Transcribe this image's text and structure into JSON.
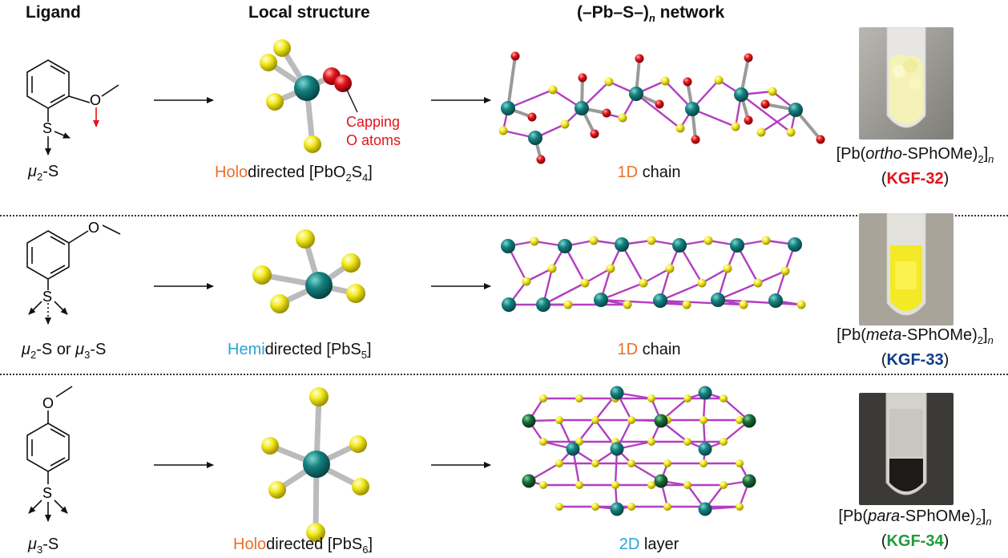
{
  "headers": {
    "ligand": "Ligand",
    "local": "Local structure",
    "network_pre": "(–Pb–S–)",
    "network_sub": "n",
    "network_post": " network"
  },
  "rows": [
    {
      "ligand_mu": "μ",
      "ligand_mu_sub": "2",
      "ligand_label_rest": "-S",
      "local_prefix": "Holo",
      "local_mid": "directed [PbO",
      "local_sub1": "2",
      "local_mid2": "S",
      "local_sub2": "4",
      "local_end": "]",
      "capping_line1": "Capping",
      "capping_line2": "O atoms",
      "net_dim": "1D",
      "net_rest": " chain",
      "formula_pre": "[Pb(",
      "formula_ital": "ortho",
      "formula_post": "-SPhOMe)",
      "formula_sub": "2",
      "formula_end": "]",
      "formula_n": "n",
      "code_open": "(",
      "code": "KGF-32",
      "code_close": ")"
    },
    {
      "ligand_mu": "μ",
      "ligand_mu_sub": "2",
      "ligand_label_mid": "-S or ",
      "ligand_mu2": "μ",
      "ligand_mu2_sub": "3",
      "ligand_label_rest": "-S",
      "local_prefix": "Hemi",
      "local_mid": "directed [PbS",
      "local_sub1": "5",
      "local_end": "]",
      "net_dim": "1D",
      "net_rest": " chain",
      "formula_pre": "[Pb(",
      "formula_ital": "meta",
      "formula_post": "-SPhOMe)",
      "formula_sub": "2",
      "formula_end": "]",
      "formula_n": "n",
      "code_open": "(",
      "code": "KGF-33",
      "code_close": ")"
    },
    {
      "ligand_mu": "μ",
      "ligand_mu_sub": "3",
      "ligand_label_rest": "-S",
      "local_prefix": "Holo",
      "local_mid": "directed [PbS",
      "local_sub1": "6",
      "local_end": "]",
      "net_dim": "2D",
      "net_rest": " layer",
      "formula_pre": "[Pb(",
      "formula_ital": "para",
      "formula_post": "-SPhOMe)",
      "formula_sub": "2",
      "formula_end": "]",
      "formula_n": "n",
      "code_open": "(",
      "code": "KGF-34",
      "code_close": ")"
    }
  ],
  "atoms": {
    "O": "O",
    "S": "S"
  },
  "colors": {
    "pb": "#14807f",
    "s": "#f2ea1e",
    "o": "#e3141b",
    "bond": "#b23fc0",
    "holo": "#e8702a",
    "hemi": "#29a3dc",
    "kgf32": "#e0121b",
    "kgf33": "#0f3b8c",
    "kgf34": "#1f9a3b"
  }
}
